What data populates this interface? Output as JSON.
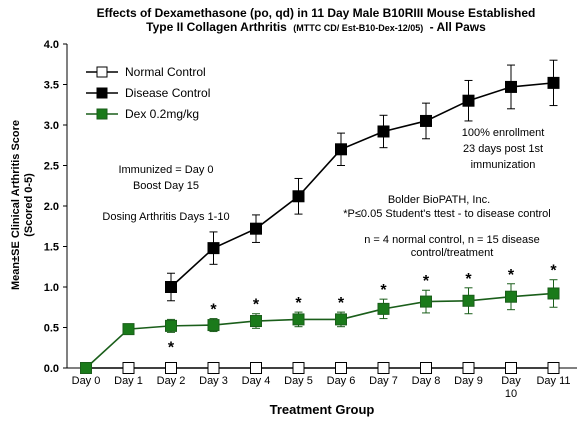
{
  "chart_data": {
    "type": "line",
    "title_line1": "Effects of Dexamethasone (po, qd) in 11 Day Male B10RIII Mouse Established",
    "title_line2_main": "Type II Collagen Arthritis",
    "title_line2_small": "(MTTC CD/ Est-B10-Dex-12/05)",
    "title_line2_tail": "- All Paws",
    "xlabel": "Treatment Group",
    "ylabel_line1": "Mean±SE Clinical Arthritis Score",
    "ylabel_line2": "(Scored 0-5)",
    "categories": [
      "Day 0",
      "Day 1",
      "Day 2",
      "Day 3",
      "Day 4",
      "Day 5",
      "Day 6",
      "Day 7",
      "Day 8",
      "Day 9",
      "Day 10",
      "Day 11"
    ],
    "ylim": [
      0,
      4
    ],
    "yticks": [
      "0.0",
      "0.5",
      "1.0",
      "1.5",
      "2.0",
      "2.5",
      "3.0",
      "3.5",
      "4.0"
    ],
    "grid": false,
    "legend_position": "top-left",
    "series": [
      {
        "name": "Normal Control",
        "marker": "square-open",
        "color": "#000000",
        "fill": "#ffffff",
        "values": [
          0,
          0,
          0,
          0,
          0,
          0,
          0,
          0,
          0,
          0,
          0,
          0
        ],
        "errors": [
          0,
          0,
          0,
          0,
          0,
          0,
          0,
          0,
          0,
          0,
          0,
          0
        ]
      },
      {
        "name": "Disease Control",
        "marker": "square",
        "color": "#000000",
        "fill": "#000000",
        "start_index": 2,
        "values": [
          null,
          null,
          1.0,
          1.48,
          1.72,
          2.12,
          2.7,
          2.92,
          3.05,
          3.3,
          3.47,
          3.52
        ],
        "errors": [
          0,
          0,
          0.17,
          0.2,
          0.17,
          0.22,
          0.2,
          0.2,
          0.22,
          0.25,
          0.27,
          0.28
        ]
      },
      {
        "name": "Dex 0.2mg/kg",
        "marker": "square",
        "color": "#1a5e1a",
        "fill": "#1a7a1a",
        "start_index": 1,
        "values": [
          0,
          0.48,
          0.52,
          0.53,
          0.58,
          0.6,
          0.6,
          0.73,
          0.82,
          0.83,
          0.88,
          0.92
        ],
        "errors": [
          0,
          0,
          0.08,
          0.08,
          0.09,
          0.09,
          0.09,
          0.12,
          0.14,
          0.16,
          0.16,
          0.17
        ]
      }
    ],
    "significance": {
      "symbol": "*",
      "above_indices": [
        3,
        4,
        5,
        6,
        7,
        8,
        9,
        10,
        11
      ],
      "below_indices": [
        2
      ]
    },
    "annotations": {
      "immunized": "Immunized = Day 0",
      "boost": "Boost Day 15",
      "dosing": "Dosing Arthritis Days 1-10",
      "enroll1": "100% enrollment",
      "enroll2": "23 days post 1st",
      "enroll3": "immunization",
      "lab": "Bolder BioPATH, Inc.",
      "stat": "*P≤0.05 Student's ttest - to disease control",
      "n1": "n = 4 normal control, n = 15 disease",
      "n2": "control/treatment"
    }
  }
}
